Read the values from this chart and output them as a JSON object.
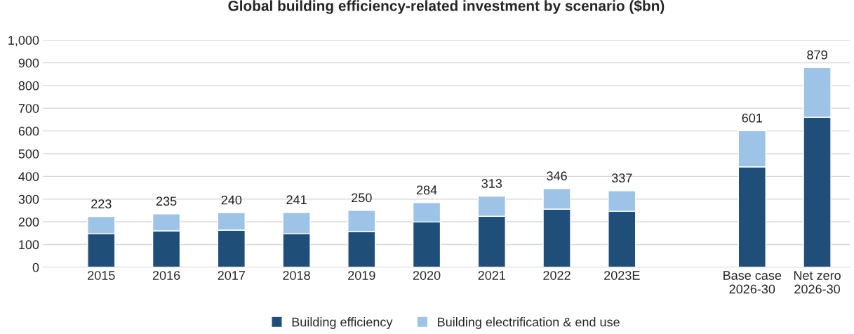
{
  "chart_data": {
    "type": "bar",
    "title": "Global building efficiency-related investment by scenario ($bn)",
    "categories": [
      "2015",
      "2016",
      "2017",
      "2018",
      "2019",
      "2020",
      "2021",
      "2022",
      "2023E",
      null,
      "Base case\n2026-30",
      "Net zero\n2026-30"
    ],
    "stacked": true,
    "series": [
      {
        "name": "Building efficiency",
        "color": "#1f4e79",
        "values": [
          148,
          160,
          163,
          148,
          157,
          199,
          224,
          256,
          246,
          null,
          442,
          660
        ]
      },
      {
        "name": "Building electrification & end use",
        "color": "#9dc3e6",
        "values": [
          75,
          75,
          77,
          93,
          93,
          85,
          89,
          90,
          91,
          null,
          159,
          219
        ]
      }
    ],
    "totals": [
      "223",
      "235",
      "240",
      "241",
      "250",
      "284",
      "313",
      "346",
      "337",
      null,
      "601",
      "879"
    ],
    "ylim": [
      0,
      1000
    ],
    "yticks": [
      0,
      {
        "value": 100,
        "label": "100"
      },
      {
        "value": 200,
        "label": "200"
      },
      {
        "value": 300,
        "label": "300"
      },
      {
        "value": 400,
        "label": "400"
      },
      {
        "value": 500,
        "label": "500"
      },
      {
        "value": 600,
        "label": "600"
      },
      {
        "value": 700,
        "label": "700"
      },
      {
        "value": 800,
        "label": "800"
      },
      {
        "value": 900,
        "label": "900"
      },
      {
        "value": 1000,
        "label": "1,000"
      }
    ],
    "grid": "y",
    "legend": "bottom"
  }
}
